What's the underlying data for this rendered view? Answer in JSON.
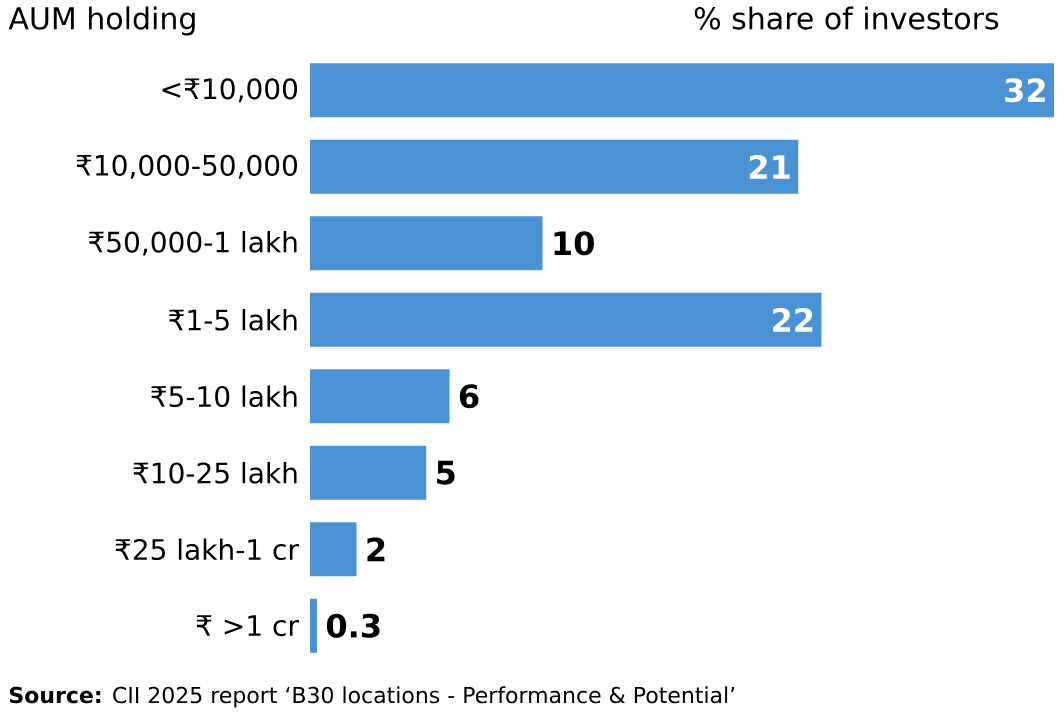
{
  "chart_data": {
    "type": "bar",
    "orientation": "horizontal",
    "ylabel": "AUM holding",
    "xlabel": "% share of investors",
    "categories": [
      "<₹10,000",
      "₹10,000-50,000",
      "₹50,000-1 lakh",
      "₹1-5 lakh",
      "₹5-10 lakh",
      "₹10-25 lakh",
      "₹25 lakh-1 cr",
      "₹ >1 cr"
    ],
    "values": [
      32,
      21,
      10,
      22,
      6,
      5,
      2,
      0.3
    ],
    "color": "#4a92d4",
    "data_labels": true,
    "annotations": [
      "**Source:** CII 2025 report ‘B30 locations - Performance & Potential’"
    ]
  }
}
